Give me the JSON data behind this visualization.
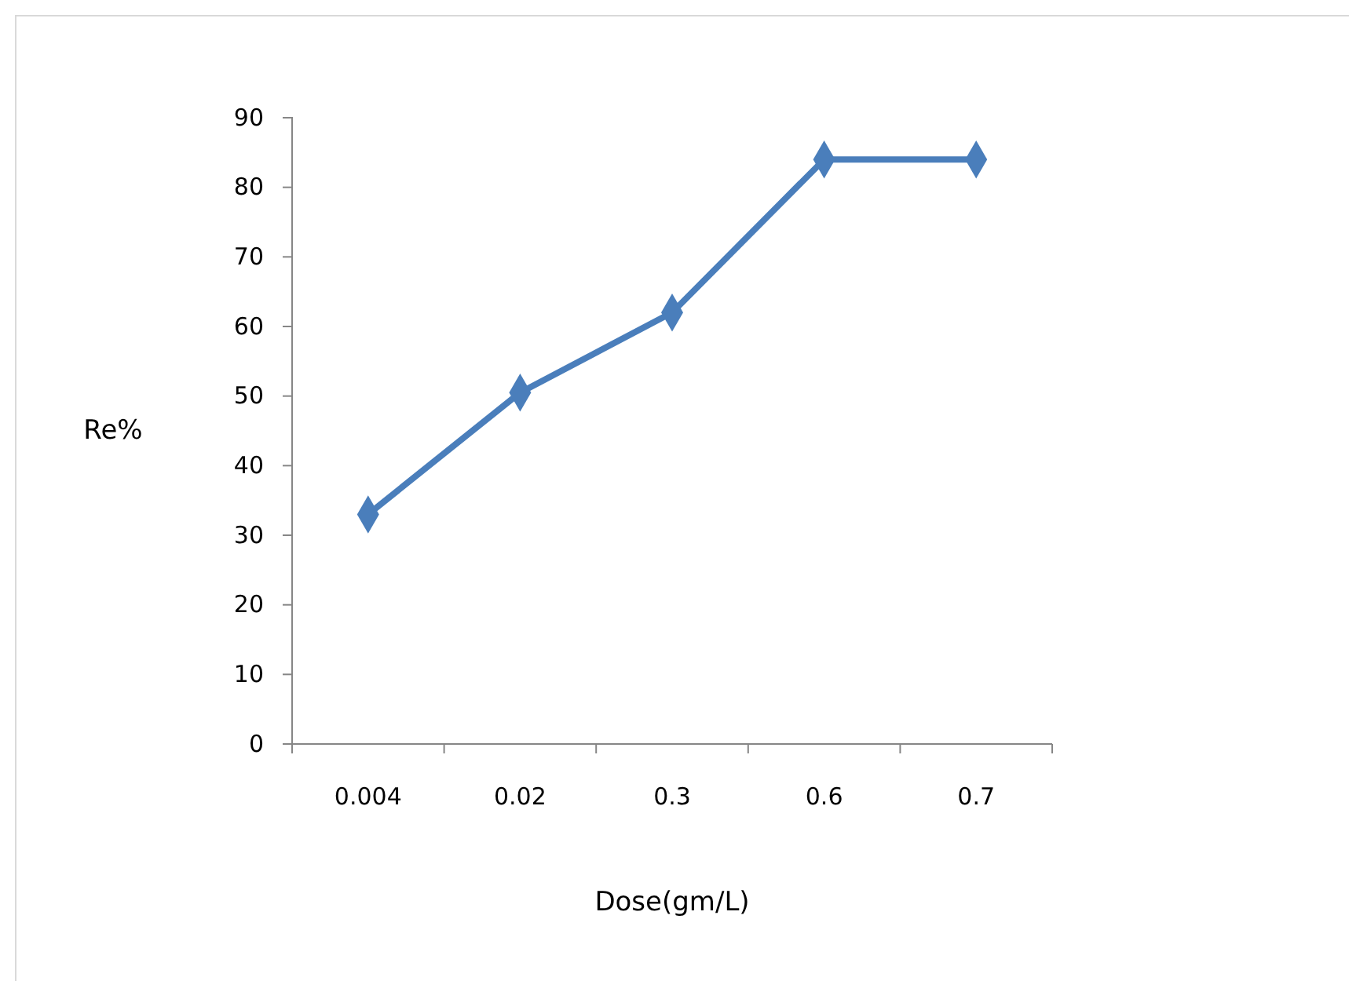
{
  "chart_data": {
    "type": "line",
    "xlabel": "Dose(gm/L)",
    "ylabel": "Re%",
    "categories": [
      "0.004",
      "0.02",
      "0.3",
      "0.6",
      "0.7"
    ],
    "series": [
      {
        "color": "#4a7ebb",
        "values": [
          33,
          50.5,
          62,
          84,
          84
        ]
      }
    ],
    "ylim": [
      0,
      90
    ],
    "yticks": [
      0,
      10,
      20,
      30,
      40,
      50,
      60,
      70,
      80,
      90
    ],
    "marker": "diamond",
    "line_style": "solid",
    "grid": false
  }
}
